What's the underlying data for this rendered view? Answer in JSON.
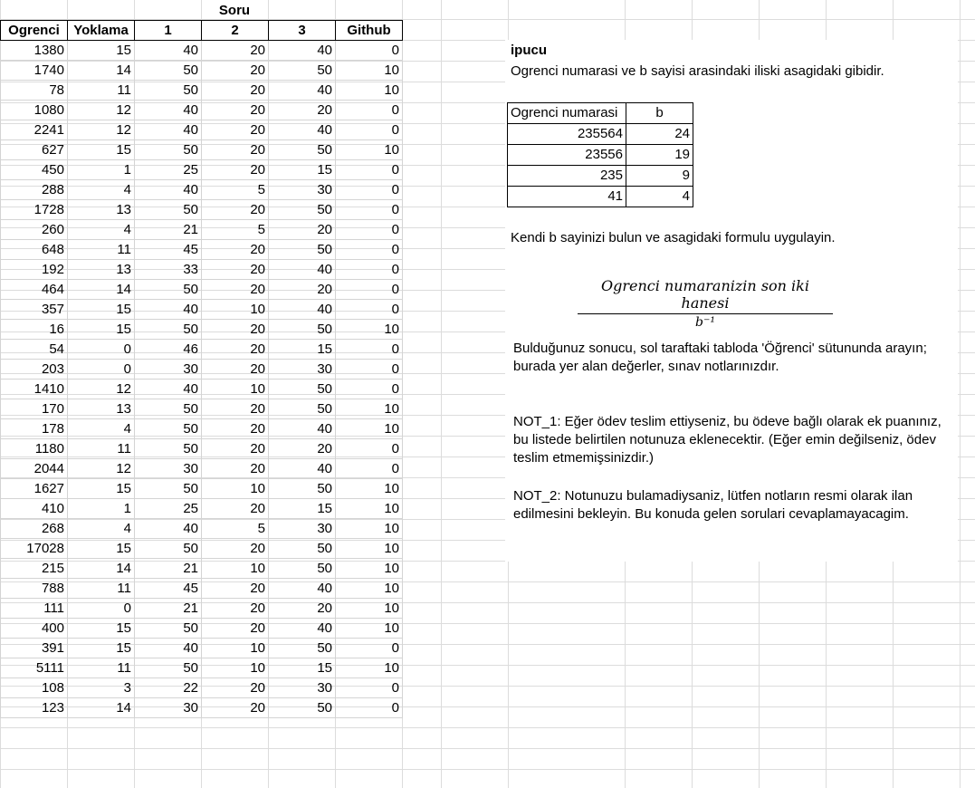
{
  "sheet": {
    "group_header": "Soru",
    "columns": [
      "Ogrenci",
      "Yoklama",
      "1",
      "2",
      "3",
      "Github"
    ],
    "rows": [
      [
        "1380",
        "15",
        "40",
        "20",
        "40",
        "0"
      ],
      [
        "1740",
        "14",
        "50",
        "20",
        "50",
        "10"
      ],
      [
        "78",
        "11",
        "50",
        "20",
        "40",
        "10"
      ],
      [
        "1080",
        "12",
        "40",
        "20",
        "20",
        "0"
      ],
      [
        "2241",
        "12",
        "40",
        "20",
        "40",
        "0"
      ],
      [
        "627",
        "15",
        "50",
        "20",
        "50",
        "10"
      ],
      [
        "450",
        "1",
        "25",
        "20",
        "15",
        "0"
      ],
      [
        "288",
        "4",
        "40",
        "5",
        "30",
        "0"
      ],
      [
        "1728",
        "13",
        "50",
        "20",
        "50",
        "0"
      ],
      [
        "260",
        "4",
        "21",
        "5",
        "20",
        "0"
      ],
      [
        "648",
        "11",
        "45",
        "20",
        "50",
        "0"
      ],
      [
        "192",
        "13",
        "33",
        "20",
        "40",
        "0"
      ],
      [
        "464",
        "14",
        "50",
        "20",
        "20",
        "0"
      ],
      [
        "357",
        "15",
        "40",
        "10",
        "40",
        "0"
      ],
      [
        "16",
        "15",
        "50",
        "20",
        "50",
        "10"
      ],
      [
        "54",
        "0",
        "46",
        "20",
        "15",
        "0"
      ],
      [
        "203",
        "0",
        "30",
        "20",
        "30",
        "0"
      ],
      [
        "1410",
        "12",
        "40",
        "10",
        "50",
        "0"
      ],
      [
        "170",
        "13",
        "50",
        "20",
        "50",
        "10"
      ],
      [
        "178",
        "4",
        "50",
        "20",
        "40",
        "10"
      ],
      [
        "1180",
        "11",
        "50",
        "20",
        "20",
        "0"
      ],
      [
        "2044",
        "12",
        "30",
        "20",
        "40",
        "0"
      ],
      [
        "1627",
        "15",
        "50",
        "10",
        "50",
        "10"
      ],
      [
        "410",
        "1",
        "25",
        "20",
        "15",
        "10"
      ],
      [
        "268",
        "4",
        "40",
        "5",
        "30",
        "10"
      ],
      [
        "17028",
        "15",
        "50",
        "20",
        "50",
        "10"
      ],
      [
        "215",
        "14",
        "21",
        "10",
        "50",
        "10"
      ],
      [
        "788",
        "11",
        "45",
        "20",
        "40",
        "10"
      ],
      [
        "111",
        "0",
        "21",
        "20",
        "20",
        "10"
      ],
      [
        "400",
        "15",
        "50",
        "20",
        "40",
        "10"
      ],
      [
        "391",
        "15",
        "40",
        "10",
        "50",
        "0"
      ],
      [
        "5111",
        "11",
        "50",
        "10",
        "15",
        "10"
      ],
      [
        "108",
        "3",
        "22",
        "20",
        "30",
        "0"
      ],
      [
        "123",
        "14",
        "30",
        "20",
        "50",
        "0"
      ]
    ]
  },
  "info": {
    "hint_title": "ipucu",
    "hint_text": "Ogrenci numarasi ve b sayisi arasindaki iliski asagidaki gibidir.",
    "hint_table": {
      "headers": [
        "Ogrenci numarasi",
        "b"
      ],
      "rows": [
        [
          "235564",
          "24"
        ],
        [
          "23556",
          "19"
        ],
        [
          "235",
          "9"
        ],
        [
          "41",
          "4"
        ]
      ]
    },
    "instruction": "Kendi b sayinizi bulun ve asagidaki formulu uygulayin.",
    "formula_numerator": "Ogrenci numaranizin son iki hanesi",
    "formula_denominator": "b⁻¹",
    "result_text": "Bulduğunuz sonucu, sol taraftaki tabloda 'Öğrenci' sütununda arayın; burada yer alan değerler, sınav notlarınızdır.",
    "note1": "NOT_1: Eğer ödev teslim ettiyseniz, bu ödeve bağlı olarak ek puanınız, bu listede belirtilen notunuza eklenecektir. (Eğer emin değilseniz, ödev teslim etmemişsinizdir.)",
    "note2": "NOT_2: Notunuzu bulamadiysaniz, lütfen notların resmi olarak ilan edilmesini bekleyin. Bu konuda gelen sorulari cevaplamayacagim."
  }
}
